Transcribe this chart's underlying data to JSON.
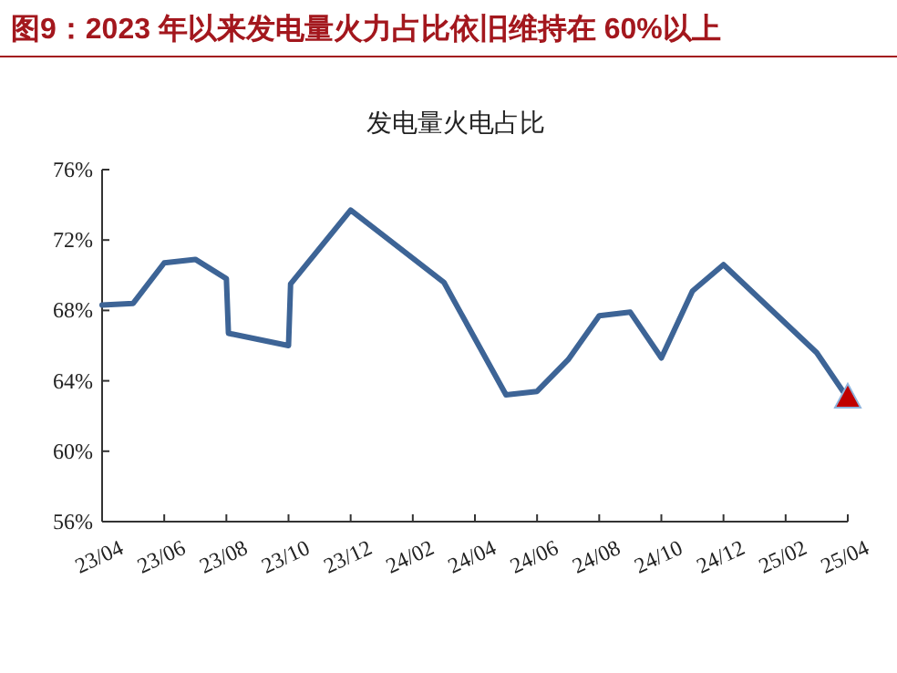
{
  "chart_data": {
    "type": "line",
    "title": "图9：2023 年以来发电量火力占比依旧维持在 60%以上",
    "subtitle": "发电量火电占比",
    "x": [
      "2023-04",
      "2023-05",
      "2023-06",
      "2023-07",
      "2023-08-01",
      "2023-08-03",
      "2023-10-01",
      "2023-10-03",
      "2023-12",
      "2024-03",
      "2024-05",
      "2024-06",
      "2024-07",
      "2024-08",
      "2024-09",
      "2024-10",
      "2024-11",
      "2024-12",
      "2025-03",
      "2025-04"
    ],
    "series": [
      {
        "color": "#3d6496",
        "values": [
          68.3,
          68.4,
          70.7,
          70.9,
          69.8,
          66.7,
          66.0,
          69.5,
          73.7,
          69.6,
          63.2,
          63.4,
          65.2,
          67.7,
          67.9,
          65.3,
          69.1,
          70.6,
          65.6,
          63.0
        ]
      },
      {
        "type": "scatter",
        "marker": "triangle",
        "color": "#c00000",
        "x": [
          "2025-04"
        ],
        "values": [
          63.0
        ]
      }
    ],
    "xlim": [
      "2023-04",
      "2025-04"
    ],
    "xticks": [
      {
        "value": "2023-04",
        "label": "23/04"
      },
      {
        "value": "2023-06",
        "label": "23/06"
      },
      {
        "value": "2023-08",
        "label": "23/08"
      },
      {
        "value": "2023-10",
        "label": "23/10"
      },
      {
        "value": "2023-12",
        "label": "23/12"
      },
      {
        "value": "2024-02",
        "label": "24/02"
      },
      {
        "value": "2024-04",
        "label": "24/04"
      },
      {
        "value": "2024-06",
        "label": "24/06"
      },
      {
        "value": "2024-08",
        "label": "24/08"
      },
      {
        "value": "2024-10",
        "label": "24/10"
      },
      {
        "value": "2024-12",
        "label": "24/12"
      },
      {
        "value": "2025-02",
        "label": "25/02"
      },
      {
        "value": "2025-04",
        "label": "25/04"
      }
    ],
    "ylim": [
      56,
      76
    ],
    "yticks": [
      {
        "value": 56,
        "label": "56%"
      },
      {
        "value": 60,
        "label": "60%"
      },
      {
        "value": 64,
        "label": "64%"
      },
      {
        "value": 68,
        "label": "68%"
      },
      {
        "value": 72,
        "label": "72%"
      },
      {
        "value": 76,
        "label": "76%"
      }
    ],
    "grid": false,
    "marker": "none",
    "line_style": "solid"
  }
}
